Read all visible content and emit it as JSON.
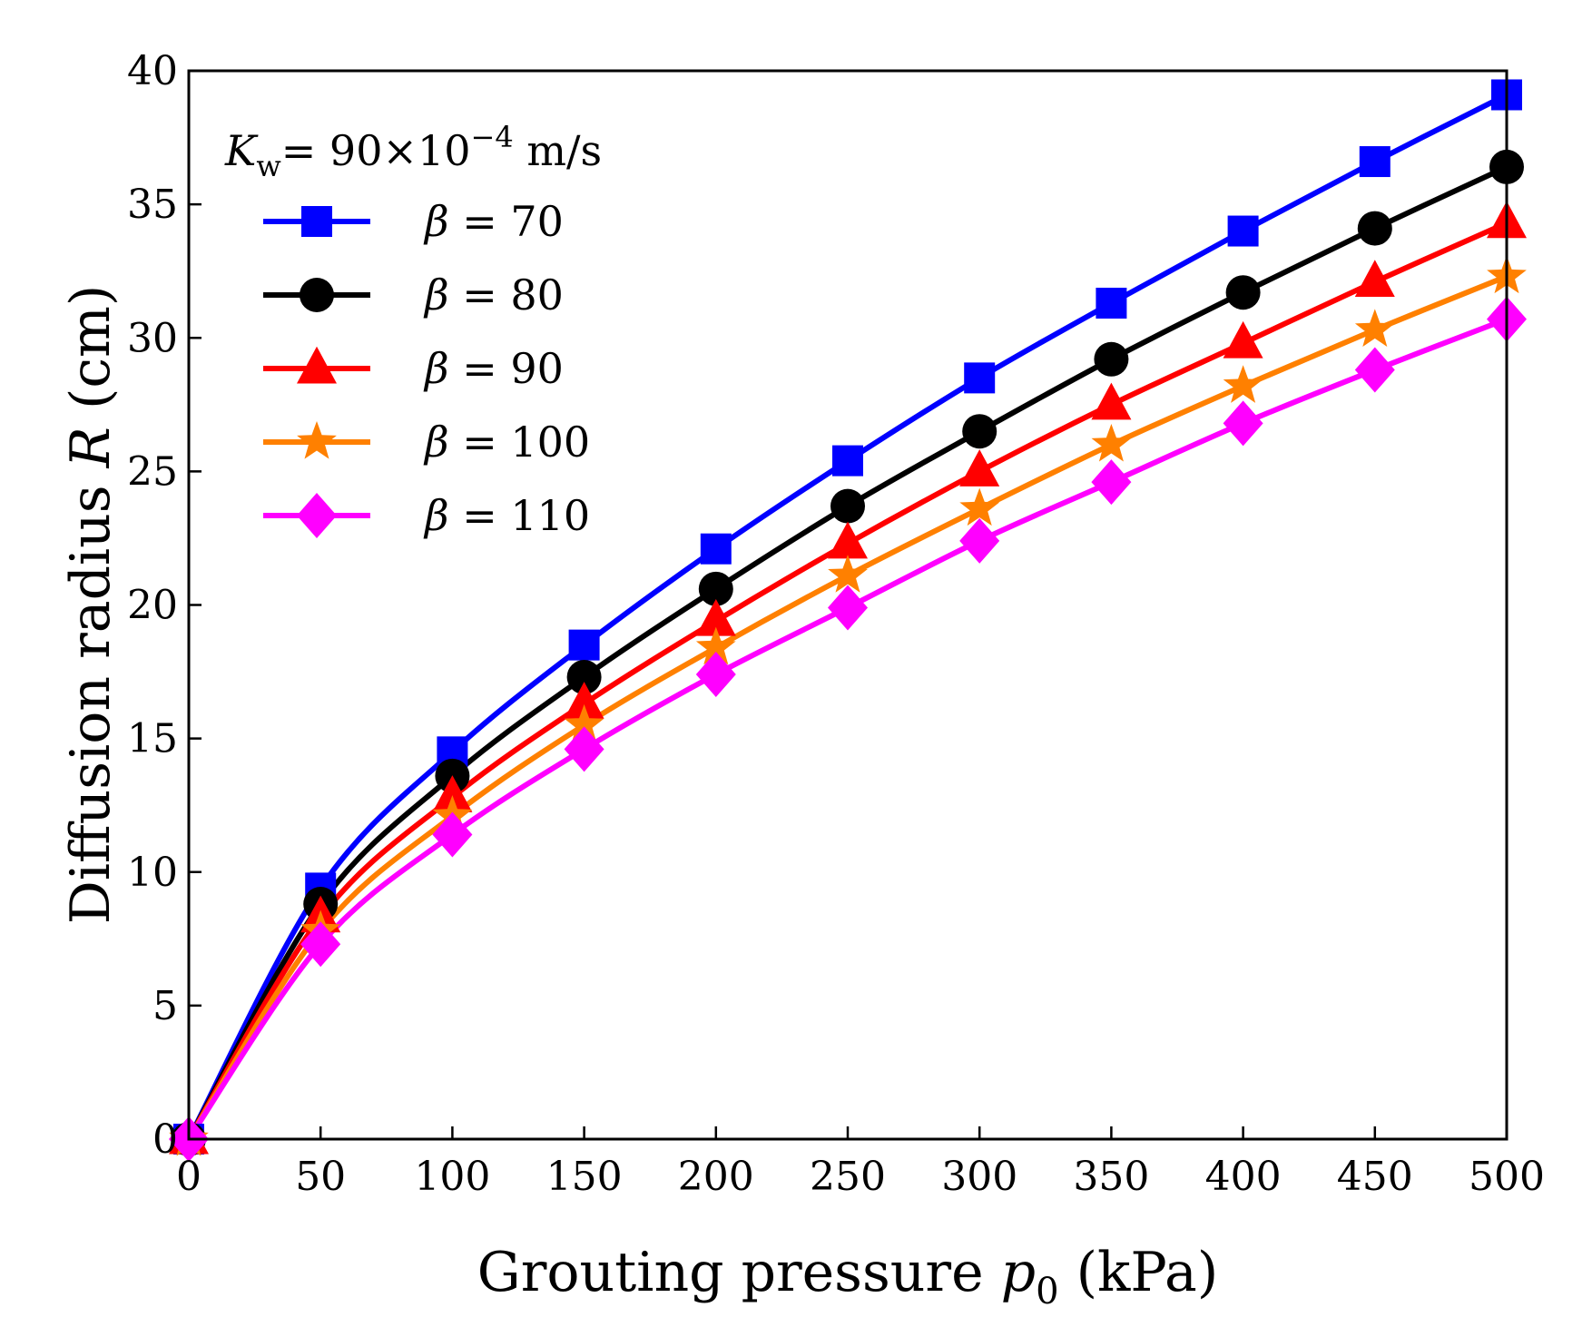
{
  "chart_data": {
    "type": "line",
    "xlabel": {
      "prefix": "Grouting pressure ",
      "var": "p",
      "sub": "0",
      "suffix": " (kPa)"
    },
    "ylabel": {
      "prefix": "Diffusion radius ",
      "var": "R",
      "suffix": " (cm)"
    },
    "xlim": [
      0,
      500
    ],
    "ylim": [
      0,
      40
    ],
    "xticks": [
      0,
      50,
      100,
      150,
      200,
      250,
      300,
      350,
      400,
      450,
      500
    ],
    "yticks": [
      0,
      5,
      10,
      15,
      20,
      25,
      30,
      35,
      40
    ],
    "grid": false,
    "legend": {
      "position": "top-left",
      "header": {
        "var": "K",
        "sub": "w",
        "text1": "= 90×10",
        "sup": "−4",
        "text2": " m/s"
      }
    },
    "x": [
      0,
      50,
      100,
      150,
      200,
      250,
      300,
      350,
      400,
      450,
      500
    ],
    "series": [
      {
        "name": "β = 70",
        "symbol": "β",
        "value": "70",
        "color": "#0000ff",
        "marker": "square",
        "values": [
          0,
          9.4,
          14.5,
          18.5,
          22.1,
          25.4,
          28.5,
          31.3,
          34.0,
          36.6,
          39.1
        ]
      },
      {
        "name": "β = 80",
        "symbol": "β",
        "value": "80",
        "color": "#000000",
        "marker": "circle",
        "values": [
          0,
          8.8,
          13.6,
          17.3,
          20.6,
          23.7,
          26.5,
          29.2,
          31.7,
          34.1,
          36.4
        ]
      },
      {
        "name": "β = 90",
        "symbol": "β",
        "value": "90",
        "color": "#ff0000",
        "marker": "triangle",
        "values": [
          0,
          8.3,
          12.8,
          16.3,
          19.4,
          22.3,
          25.0,
          27.5,
          29.8,
          32.1,
          34.3
        ]
      },
      {
        "name": "β = 100",
        "symbol": "β",
        "value": "100",
        "color": "#ff8000",
        "marker": "star",
        "values": [
          0,
          7.8,
          12.1,
          15.5,
          18.4,
          21.1,
          23.6,
          26.0,
          28.2,
          30.3,
          32.3
        ]
      },
      {
        "name": "β = 110",
        "symbol": "β",
        "value": "110",
        "color": "#ff00ff",
        "marker": "diamond",
        "values": [
          0,
          7.3,
          11.4,
          14.6,
          17.4,
          19.9,
          22.4,
          24.6,
          26.8,
          28.8,
          30.7
        ]
      }
    ]
  }
}
